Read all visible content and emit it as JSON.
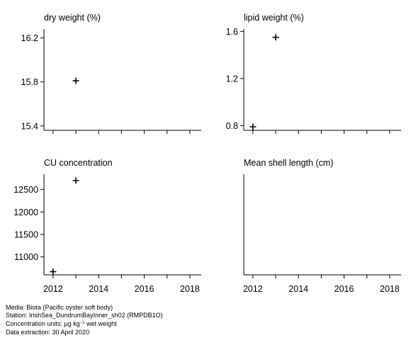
{
  "chart_data": [
    {
      "type": "scatter",
      "title": "dry weight (%)",
      "xlim": [
        2011.6,
        2018.5
      ],
      "ylim": [
        15.36,
        16.28
      ],
      "xticks": [
        2012,
        2013,
        2014,
        2015,
        2016,
        2017,
        2018
      ],
      "xticklabels": [],
      "yticks": [
        15.4,
        15.8,
        16.2
      ],
      "yticklabels": [
        "15.4",
        "15.8",
        "16.2"
      ],
      "points": [
        {
          "x": 2013,
          "y": 15.81
        }
      ]
    },
    {
      "type": "scatter",
      "title": "lipid weight (%)",
      "xlim": [
        2011.6,
        2018.5
      ],
      "ylim": [
        0.76,
        1.62
      ],
      "xticks": [
        2012,
        2013,
        2014,
        2015,
        2016,
        2017,
        2018
      ],
      "xticklabels": [],
      "yticks": [
        0.8,
        1.2,
        1.6
      ],
      "yticklabels": [
        "0.8",
        "1.2",
        "1.6"
      ],
      "points": [
        {
          "x": 2012,
          "y": 0.79
        },
        {
          "x": 2013,
          "y": 1.55
        }
      ]
    },
    {
      "type": "scatter",
      "title": "CU concentration",
      "xlim": [
        2011.6,
        2018.5
      ],
      "ylim": [
        10600,
        12840
      ],
      "xticks": [
        2012,
        2013,
        2014,
        2015,
        2016,
        2017,
        2018
      ],
      "xticklabels": [
        "2012",
        "",
        "2014",
        "",
        "2016",
        "",
        "2018"
      ],
      "yticks": [
        11000,
        11500,
        12000,
        12500
      ],
      "yticklabels": [
        "11000",
        "11500",
        "12000",
        "12500"
      ],
      "points": [
        {
          "x": 2012,
          "y": 10670
        },
        {
          "x": 2013,
          "y": 12700
        }
      ]
    },
    {
      "type": "scatter",
      "title": "Mean shell length (cm)",
      "xlim": [
        2011.6,
        2018.5
      ],
      "ylim": [
        0,
        1
      ],
      "xticks": [
        2012,
        2013,
        2014,
        2015,
        2016,
        2017,
        2018
      ],
      "xticklabels": [
        "2012",
        "",
        "2014",
        "",
        "2016",
        "",
        "2018"
      ],
      "yticks": [],
      "yticklabels": [],
      "points": []
    }
  ],
  "footer": {
    "media": "Media: Biota (Pacific oyster soft body)",
    "station": "Station: IrishSea_DundrumBayInner_sh02 (RMPDB1O)",
    "units_prefix": "Concentration units:  µg kg",
    "units_exp": "−1",
    "units_suffix": " wet weight",
    "extraction": "Data extraction: 30 April 2020"
  }
}
